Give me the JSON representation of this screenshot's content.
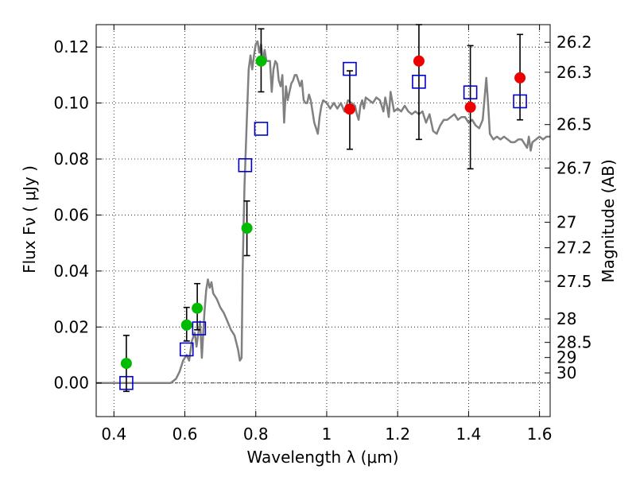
{
  "chart_data": {
    "type": "scatter",
    "xlabel": "Wavelength  λ (μm)",
    "ylabel": "Flux  Fν  ( μJy )",
    "y2label": "Magnitude (AB)",
    "xlim": [
      0.35,
      1.63
    ],
    "ylim": [
      -0.012,
      0.128
    ],
    "grid": true,
    "x_ticks": [
      0.4,
      0.6,
      0.8,
      1.0,
      1.2,
      1.4,
      1.6
    ],
    "x_tick_labels": [
      "0.4",
      "0.6",
      "0.8",
      "1",
      "1.2",
      "1.4",
      "1.6"
    ],
    "y_ticks": [
      0.0,
      0.02,
      0.04,
      0.06,
      0.08,
      0.1,
      0.12
    ],
    "y_tick_labels": [
      "0.00",
      "0.02",
      "0.04",
      "0.06",
      "0.08",
      "0.10",
      "0.12"
    ],
    "y2_ticks": [
      {
        "label": "26.2",
        "flux": 0.1217
      },
      {
        "label": "26.3",
        "flux": 0.111
      },
      {
        "label": "26.5",
        "flux": 0.0923
      },
      {
        "label": "26.7",
        "flux": 0.0768
      },
      {
        "label": "27",
        "flux": 0.0574
      },
      {
        "label": "27.2",
        "flux": 0.0483
      },
      {
        "label": "27.5",
        "flux": 0.0363
      },
      {
        "label": "28",
        "flux": 0.0229
      },
      {
        "label": "28.5",
        "flux": 0.0145
      },
      {
        "label": "29",
        "flux": 0.0091
      },
      {
        "label": "30",
        "flux": 0.0036
      }
    ],
    "series": [
      {
        "kind": "line",
        "color": "#808080",
        "points": [
          [
            0.35,
            0.0
          ],
          [
            0.56,
            0.0
          ],
          [
            0.575,
            0.0015
          ],
          [
            0.585,
            0.004
          ],
          [
            0.595,
            0.008
          ],
          [
            0.605,
            0.01
          ],
          [
            0.612,
            0.008
          ],
          [
            0.62,
            0.015
          ],
          [
            0.628,
            0.018
          ],
          [
            0.633,
            0.013
          ],
          [
            0.638,
            0.018
          ],
          [
            0.643,
            0.022
          ],
          [
            0.648,
            0.009
          ],
          [
            0.655,
            0.025
          ],
          [
            0.66,
            0.033
          ],
          [
            0.665,
            0.037
          ],
          [
            0.67,
            0.034
          ],
          [
            0.675,
            0.036
          ],
          [
            0.68,
            0.032
          ],
          [
            0.69,
            0.03
          ],
          [
            0.7,
            0.027
          ],
          [
            0.71,
            0.025
          ],
          [
            0.72,
            0.022
          ],
          [
            0.73,
            0.019
          ],
          [
            0.74,
            0.017
          ],
          [
            0.75,
            0.012
          ],
          [
            0.755,
            0.008
          ],
          [
            0.76,
            0.009
          ],
          [
            0.763,
            0.04
          ],
          [
            0.768,
            0.07
          ],
          [
            0.775,
            0.095
          ],
          [
            0.78,
            0.112
          ],
          [
            0.785,
            0.117
          ],
          [
            0.79,
            0.112
          ],
          [
            0.795,
            0.117
          ],
          [
            0.8,
            0.121
          ],
          [
            0.805,
            0.122
          ],
          [
            0.81,
            0.118
          ],
          [
            0.815,
            0.121
          ],
          [
            0.82,
            0.115
          ],
          [
            0.825,
            0.119
          ],
          [
            0.83,
            0.115
          ],
          [
            0.84,
            0.115
          ],
          [
            0.845,
            0.104
          ],
          [
            0.85,
            0.112
          ],
          [
            0.855,
            0.115
          ],
          [
            0.86,
            0.114
          ],
          [
            0.865,
            0.108
          ],
          [
            0.87,
            0.106
          ],
          [
            0.875,
            0.11
          ],
          [
            0.88,
            0.093
          ],
          [
            0.885,
            0.106
          ],
          [
            0.89,
            0.101
          ],
          [
            0.895,
            0.104
          ],
          [
            0.9,
            0.107
          ],
          [
            0.905,
            0.108
          ],
          [
            0.91,
            0.11
          ],
          [
            0.915,
            0.11
          ],
          [
            0.92,
            0.108
          ],
          [
            0.925,
            0.106
          ],
          [
            0.93,
            0.108
          ],
          [
            0.935,
            0.101
          ],
          [
            0.94,
            0.1
          ],
          [
            0.945,
            0.1
          ],
          [
            0.95,
            0.103
          ],
          [
            0.955,
            0.101
          ],
          [
            0.96,
            0.097
          ],
          [
            0.965,
            0.093
          ],
          [
            0.97,
            0.091
          ],
          [
            0.975,
            0.089
          ],
          [
            0.98,
            0.095
          ],
          [
            0.985,
            0.099
          ],
          [
            0.99,
            0.101
          ],
          [
            1.0,
            0.1
          ],
          [
            1.01,
            0.098
          ],
          [
            1.02,
            0.1
          ],
          [
            1.03,
            0.098
          ],
          [
            1.04,
            0.1
          ],
          [
            1.05,
            0.097
          ],
          [
            1.06,
            0.101
          ],
          [
            1.07,
            0.1
          ],
          [
            1.08,
            0.099
          ],
          [
            1.085,
            0.096
          ],
          [
            1.09,
            0.094
          ],
          [
            1.095,
            0.099
          ],
          [
            1.1,
            0.101
          ],
          [
            1.105,
            0.098
          ],
          [
            1.11,
            0.102
          ],
          [
            1.12,
            0.101
          ],
          [
            1.13,
            0.1
          ],
          [
            1.14,
            0.102
          ],
          [
            1.15,
            0.101
          ],
          [
            1.16,
            0.097
          ],
          [
            1.165,
            0.102
          ],
          [
            1.17,
            0.099
          ],
          [
            1.175,
            0.095
          ],
          [
            1.18,
            0.104
          ],
          [
            1.19,
            0.097
          ],
          [
            1.2,
            0.098
          ],
          [
            1.21,
            0.097
          ],
          [
            1.22,
            0.099
          ],
          [
            1.23,
            0.097
          ],
          [
            1.24,
            0.096
          ],
          [
            1.25,
            0.097
          ],
          [
            1.26,
            0.096
          ],
          [
            1.27,
            0.097
          ],
          [
            1.28,
            0.093
          ],
          [
            1.29,
            0.096
          ],
          [
            1.3,
            0.09
          ],
          [
            1.31,
            0.089
          ],
          [
            1.32,
            0.092
          ],
          [
            1.33,
            0.094
          ],
          [
            1.34,
            0.094
          ],
          [
            1.35,
            0.095
          ],
          [
            1.36,
            0.096
          ],
          [
            1.37,
            0.094
          ],
          [
            1.38,
            0.095
          ],
          [
            1.39,
            0.095
          ],
          [
            1.4,
            0.093
          ],
          [
            1.41,
            0.094
          ],
          [
            1.42,
            0.092
          ],
          [
            1.43,
            0.091
          ],
          [
            1.44,
            0.094
          ],
          [
            1.45,
            0.109
          ],
          [
            1.455,
            0.1
          ],
          [
            1.46,
            0.089
          ],
          [
            1.47,
            0.087
          ],
          [
            1.48,
            0.088
          ],
          [
            1.49,
            0.087
          ],
          [
            1.5,
            0.088
          ],
          [
            1.51,
            0.087
          ],
          [
            1.52,
            0.086
          ],
          [
            1.53,
            0.086
          ],
          [
            1.54,
            0.087
          ],
          [
            1.55,
            0.087
          ],
          [
            1.56,
            0.085
          ],
          [
            1.565,
            0.084
          ],
          [
            1.57,
            0.088
          ],
          [
            1.575,
            0.083
          ],
          [
            1.58,
            0.086
          ],
          [
            1.59,
            0.087
          ],
          [
            1.6,
            0.088
          ],
          [
            1.61,
            0.087
          ],
          [
            1.62,
            0.088
          ],
          [
            1.63,
            0.088
          ]
        ]
      },
      {
        "kind": "errorbar",
        "color": "#000000",
        "points": [
          {
            "x": 0.435,
            "lo": -0.003,
            "hi": 0.017
          },
          {
            "x": 0.605,
            "lo": 0.015,
            "hi": 0.027
          },
          {
            "x": 0.635,
            "lo": 0.019,
            "hi": 0.0355
          },
          {
            "x": 0.775,
            "lo": 0.0455,
            "hi": 0.065
          },
          {
            "x": 0.815,
            "lo": 0.104,
            "hi": 0.1265
          },
          {
            "x": 1.065,
            "lo": 0.0835,
            "hi": 0.1115
          },
          {
            "x": 1.26,
            "lo": 0.087,
            "hi": 0.128
          },
          {
            "x": 1.405,
            "lo": 0.0765,
            "hi": 0.1205
          },
          {
            "x": 1.545,
            "lo": 0.094,
            "hi": 0.1245
          }
        ]
      },
      {
        "kind": "square",
        "color": "#0000cc",
        "points": [
          [
            0.435,
            0.0
          ],
          [
            0.605,
            0.012
          ],
          [
            0.64,
            0.0195
          ],
          [
            0.77,
            0.0778
          ],
          [
            0.815,
            0.0908
          ],
          [
            1.065,
            0.1122
          ],
          [
            1.26,
            0.1076
          ],
          [
            1.405,
            0.1038
          ],
          [
            1.545,
            0.1006
          ]
        ]
      },
      {
        "kind": "circle",
        "color": "#00bb00",
        "points": [
          [
            0.435,
            0.007
          ],
          [
            0.605,
            0.0207
          ],
          [
            0.635,
            0.0267
          ],
          [
            0.775,
            0.0553
          ],
          [
            0.815,
            0.115
          ]
        ]
      },
      {
        "kind": "circle",
        "color": "#ee0000",
        "points": [
          [
            1.065,
            0.0978
          ],
          [
            1.26,
            0.115
          ],
          [
            1.405,
            0.0985
          ],
          [
            1.545,
            0.109
          ]
        ]
      }
    ],
    "reference_line": {
      "y": 0.0,
      "style": "dash-dot"
    }
  }
}
